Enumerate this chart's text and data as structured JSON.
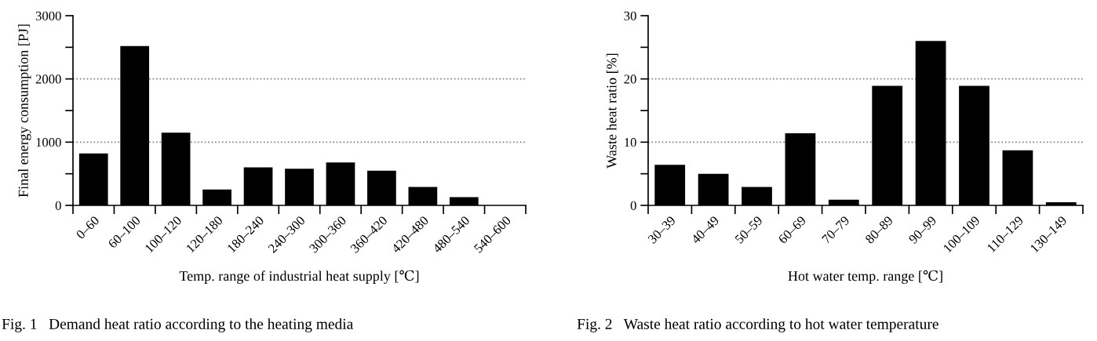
{
  "chart_data": [
    {
      "type": "bar",
      "title": "Fig. 1   Demand heat ratio according to the heating media",
      "xlabel": "Temp. range of industrial heat supply [℃]",
      "ylabel": "Final energy consumption [PJ]",
      "categories": [
        "0–60",
        "60–100",
        "100–120",
        "120–180",
        "180–240",
        "240–300",
        "300–360",
        "360–420",
        "420–480",
        "480–540",
        "540–600"
      ],
      "values": [
        820,
        2520,
        1150,
        250,
        600,
        580,
        680,
        550,
        290,
        130,
        0
      ],
      "color": "#000000",
      "ylim": [
        0,
        3000
      ],
      "yticks": [
        0,
        {
          "value": 500,
          "label": null
        },
        1000,
        {
          "value": 1500,
          "label": null
        },
        2000,
        {
          "value": 2500,
          "label": null
        },
        3000
      ],
      "ref_lines": [
        {
          "axis": "y",
          "value": 1000,
          "color": "#808080",
          "line_style": "dotted"
        },
        {
          "axis": "y",
          "value": 2000,
          "color": "#808080",
          "line_style": "dotted"
        }
      ]
    },
    {
      "type": "bar",
      "title": "Fig. 2   Waste heat ratio according to hot water temperature",
      "xlabel": "Hot water temp. range [℃]",
      "ylabel": "Waste heat ratio [%]",
      "categories": [
        "30–39",
        "40–49",
        "50–59",
        "60–69",
        "70–79",
        "80–89",
        "90–99",
        "100–109",
        "110–129",
        "130–149"
      ],
      "values": [
        6.4,
        5.0,
        2.9,
        11.4,
        0.9,
        18.9,
        26.0,
        18.9,
        8.7,
        0.5
      ],
      "color": "#000000",
      "ylim": [
        0,
        30
      ],
      "yticks": [
        0,
        {
          "value": 5,
          "label": null
        },
        10,
        {
          "value": 15,
          "label": null
        },
        20,
        {
          "value": 25,
          "label": null
        },
        30
      ],
      "ref_lines": [
        {
          "axis": "y",
          "value": 10,
          "color": "#808080",
          "line_style": "dotted"
        },
        {
          "axis": "y",
          "value": 20,
          "color": "#808080",
          "line_style": "dotted"
        }
      ]
    }
  ]
}
